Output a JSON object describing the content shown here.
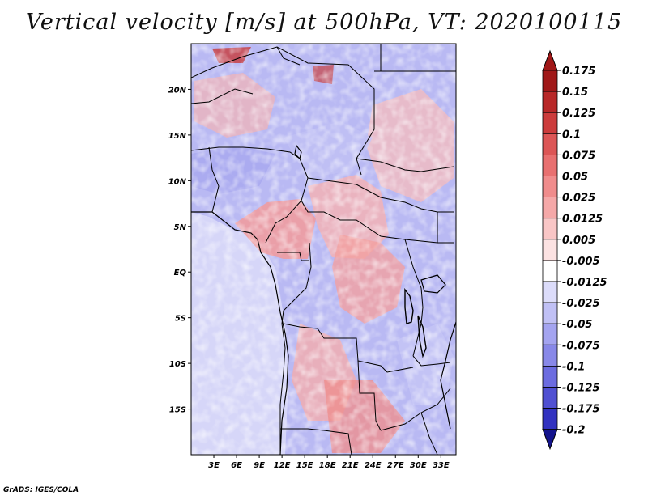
{
  "title": "Vertical velocity [m/s] at 500hPa, VT: 2020100115",
  "credit": "GrADS: IGES/COLA",
  "map": {
    "lon_range": [
      0,
      35
    ],
    "lat_range": [
      -20,
      25
    ],
    "lon_ticks": [
      {
        "value": 3,
        "label": "3E"
      },
      {
        "value": 6,
        "label": "6E"
      },
      {
        "value": 9,
        "label": "9E"
      },
      {
        "value": 12,
        "label": "12E"
      },
      {
        "value": 15,
        "label": "15E"
      },
      {
        "value": 18,
        "label": "18E"
      },
      {
        "value": 21,
        "label": "21E"
      },
      {
        "value": 24,
        "label": "24E"
      },
      {
        "value": 27,
        "label": "27E"
      },
      {
        "value": 30,
        "label": "30E"
      },
      {
        "value": 33,
        "label": "33E"
      }
    ],
    "lat_ticks": [
      {
        "value": 20,
        "label": "20N"
      },
      {
        "value": 15,
        "label": "15N"
      },
      {
        "value": 10,
        "label": "10N"
      },
      {
        "value": 5,
        "label": "5N"
      },
      {
        "value": 0,
        "label": "EQ"
      },
      {
        "value": -5,
        "label": "5S"
      },
      {
        "value": -10,
        "label": "10S"
      },
      {
        "value": -15,
        "label": "15S"
      }
    ]
  },
  "colorbar": {
    "levels": [
      {
        "label": "0.175",
        "color": "#a01818"
      },
      {
        "label": "0.15",
        "color": "#b82828"
      },
      {
        "label": "0.125",
        "color": "#cc3c3c"
      },
      {
        "label": "0.1",
        "color": "#dc5656"
      },
      {
        "label": "0.075",
        "color": "#e87070"
      },
      {
        "label": "0.05",
        "color": "#f08c8c"
      },
      {
        "label": "0.025",
        "color": "#f5a8a8"
      },
      {
        "label": "0.0125",
        "color": "#f9c6c6"
      },
      {
        "label": "0.005",
        "color": "#fce2e2"
      },
      {
        "label": "-0.005",
        "color": "#ffffff"
      },
      {
        "label": "-0.0125",
        "color": "#dcdcfa"
      },
      {
        "label": "-0.025",
        "color": "#c0c0f5"
      },
      {
        "label": "-0.05",
        "color": "#a4a4f0"
      },
      {
        "label": "-0.075",
        "color": "#8888e8"
      },
      {
        "label": "-0.1",
        "color": "#6c6ce0"
      },
      {
        "label": "-0.125",
        "color": "#5050d2"
      },
      {
        "label": "-0.175",
        "color": "#3232c0"
      },
      {
        "label": "-0.2",
        "color": "#1c1ca8"
      }
    ],
    "top_color": "#a01818",
    "bottom_color": "#14148c"
  }
}
